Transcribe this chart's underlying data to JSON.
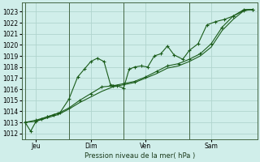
{
  "xlabel": "Pression niveau de la mer( hPa )",
  "bg_color": "#d0eeea",
  "plot_bg_color": "#d0eeea",
  "grid_color": "#b0d4ce",
  "line_color": "#1a5c1a",
  "ylim": [
    1011.5,
    1023.8
  ],
  "yticks": [
    1012,
    1013,
    1014,
    1015,
    1016,
    1017,
    1018,
    1019,
    1020,
    1021,
    1022,
    1023
  ],
  "xlim": [
    -0.15,
    10.6
  ],
  "day_positions": [
    0.5,
    3.0,
    5.5,
    8.5
  ],
  "day_labels": [
    "Jeu",
    "Dim",
    "Ven",
    "Sam"
  ],
  "vline_positions": [
    0.0,
    2.0,
    4.5,
    7.5
  ],
  "series1": {
    "x": [
      0.0,
      0.25,
      0.5,
      0.75,
      1.0,
      1.3,
      1.6,
      2.0,
      2.4,
      2.7,
      3.0,
      3.3,
      3.6,
      3.9,
      4.2,
      4.5,
      4.75,
      5.0,
      5.3,
      5.6,
      5.9,
      6.2,
      6.5,
      6.8,
      7.2,
      7.5,
      7.9,
      8.3,
      8.7,
      9.1,
      9.5,
      10.0,
      10.4
    ],
    "y": [
      1013.0,
      1012.2,
      1013.1,
      1013.3,
      1013.5,
      1013.7,
      1013.9,
      1015.1,
      1017.1,
      1017.8,
      1018.5,
      1018.8,
      1018.5,
      1016.4,
      1016.3,
      1016.1,
      1017.8,
      1018.0,
      1018.1,
      1018.0,
      1019.0,
      1019.2,
      1019.9,
      1019.1,
      1018.7,
      1019.5,
      1020.1,
      1021.8,
      1022.1,
      1022.3,
      1022.6,
      1023.1,
      1023.2
    ]
  },
  "series2": {
    "x": [
      0.0,
      0.5,
      1.0,
      1.5,
      2.0,
      2.5,
      3.0,
      3.5,
      4.0,
      4.5,
      5.0,
      5.5,
      6.0,
      6.5,
      7.0,
      7.5,
      8.0,
      8.5,
      9.0,
      9.5,
      10.0,
      10.4
    ],
    "y": [
      1013.0,
      1013.2,
      1013.5,
      1013.8,
      1014.3,
      1015.0,
      1015.6,
      1016.2,
      1016.3,
      1016.5,
      1016.7,
      1017.1,
      1017.6,
      1018.1,
      1018.3,
      1018.7,
      1019.2,
      1020.1,
      1021.6,
      1022.6,
      1023.2,
      1023.2
    ]
  },
  "series3": {
    "x": [
      0.0,
      0.5,
      1.0,
      1.5,
      2.0,
      2.5,
      3.0,
      3.5,
      4.0,
      4.5,
      5.0,
      5.5,
      6.0,
      6.5,
      7.0,
      7.5,
      8.0,
      8.5,
      9.0,
      9.5,
      10.0,
      10.4
    ],
    "y": [
      1013.0,
      1013.1,
      1013.4,
      1013.7,
      1014.2,
      1014.8,
      1015.3,
      1015.8,
      1016.2,
      1016.4,
      1016.6,
      1017.0,
      1017.4,
      1017.9,
      1018.1,
      1018.5,
      1019.0,
      1019.8,
      1021.3,
      1022.3,
      1023.1,
      1023.2
    ]
  }
}
